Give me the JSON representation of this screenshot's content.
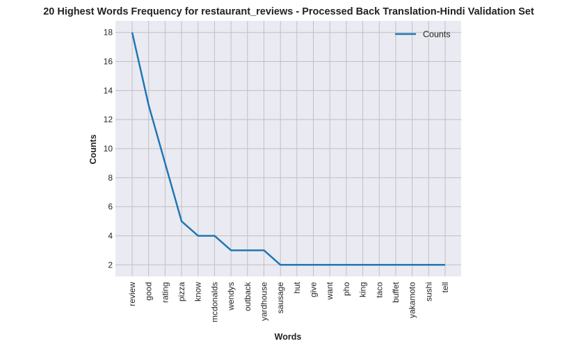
{
  "chart_data": {
    "type": "line",
    "title": "20 Highest Words Frequency for restaurant_reviews - Processed Back Translation-Hindi Validation Set",
    "xlabel": "Words",
    "ylabel": "Counts",
    "categories": [
      "review",
      "good",
      "rating",
      "pizza",
      "know",
      "mcdonalds",
      "wendys",
      "outback",
      "yardhouse",
      "sausage",
      "hut",
      "give",
      "want",
      "pho",
      "king",
      "taco",
      "buffet",
      "yakamoto",
      "sushi",
      "tell"
    ],
    "series": [
      {
        "name": "Counts",
        "values": [
          18,
          13,
          9,
          5,
          4,
          4,
          3,
          3,
          3,
          2,
          2,
          2,
          2,
          2,
          2,
          2,
          2,
          2,
          2,
          2
        ],
        "color": "#1f77b4"
      }
    ],
    "y_ticks": [
      2,
      4,
      6,
      8,
      10,
      12,
      14,
      16,
      18
    ],
    "ylim": [
      1.2,
      18.8
    ],
    "grid": true,
    "legend_position": "top-right",
    "colors": {
      "plot_background": "#eaeaf2",
      "grid": "#c0c0c0",
      "line": "#1f77b4"
    }
  }
}
